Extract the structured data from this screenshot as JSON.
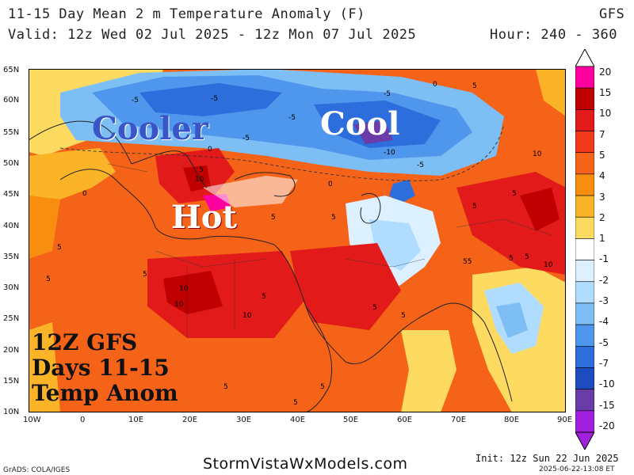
{
  "header": {
    "title": "11-15 Day Mean 2 m Temperature Anomaly (F)",
    "model": "GFS",
    "valid": "Valid: 12z Wed 02 Jul 2025 - 12z Mon 07 Jul 2025",
    "hour": "Hour: 240 - 360"
  },
  "map": {
    "lat_labels": [
      "65N",
      "60N",
      "55N",
      "50N",
      "45N",
      "40N",
      "35N",
      "30N",
      "25N",
      "20N",
      "15N",
      "10N"
    ],
    "lon_labels": [
      "10W",
      "0",
      "10E",
      "20E",
      "30E",
      "40E",
      "50E",
      "60E",
      "70E",
      "80E",
      "90E"
    ],
    "contour_labels": [
      "-5",
      "-5",
      "-5",
      "-5",
      "-5",
      "-5",
      "0",
      "0",
      "0",
      "0",
      "5",
      "5",
      "5",
      "5",
      "5",
      "5",
      "5",
      "5",
      "5",
      "5",
      "5",
      "5",
      "5",
      "5",
      "5",
      "5",
      "5",
      "5",
      "5",
      "5",
      "-10",
      "10",
      "10",
      "10",
      "10",
      "10",
      "10",
      "55"
    ],
    "overlays": {
      "cooler": "Cooler",
      "cool": "Cool",
      "hot": "Hot",
      "stamp_line1": "12Z GFS",
      "stamp_line2": "Days 11-15",
      "stamp_line3": "Temp Anom"
    }
  },
  "colorbar": {
    "labels": [
      "20",
      "15",
      "10",
      "7",
      "5",
      "4",
      "3",
      "2",
      "1",
      "-1",
      "-2",
      "-3",
      "-4",
      "-5",
      "-7",
      "-10",
      "-15",
      "-20"
    ],
    "colors": [
      "#ff00a0",
      "#c00000",
      "#e21a1a",
      "#f03a1a",
      "#f56318",
      "#f88e10",
      "#fbb428",
      "#fdda60",
      "#ffffff",
      "#dcf0ff",
      "#b0dcff",
      "#7dbef5",
      "#4f97ec",
      "#2d6ddc",
      "#1e4cc0",
      "#6a3ca8",
      "#a020e0"
    ]
  },
  "footer": {
    "site": "StormVistaWxModels.com",
    "grads": "GrADS: COLA/IGES",
    "init": "Init: 12z Sun 22 Jun 2025",
    "timestamp": "2025-06-22-13:08 ET"
  }
}
